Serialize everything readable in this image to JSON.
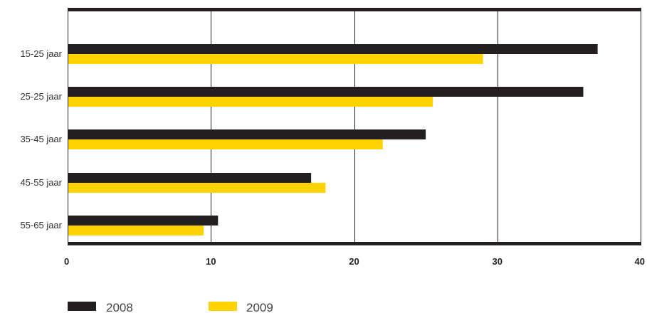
{
  "chart_data": {
    "type": "bar",
    "orientation": "horizontal",
    "categories": [
      "15-25 jaar",
      "25-25 jaar",
      "35-45 jaar",
      "45-55 jaar",
      "55-65 jaar"
    ],
    "series": [
      {
        "name": "2008",
        "color": "#231f20",
        "values": [
          37,
          36,
          25,
          17,
          10.5
        ]
      },
      {
        "name": "2009",
        "color": "#ffd200",
        "values": [
          29,
          25.5,
          22,
          18,
          9.5
        ]
      }
    ],
    "x_ticks": [
      "0",
      "10",
      "20",
      "30",
      "40"
    ],
    "xlim": [
      0,
      40
    ],
    "grid": true,
    "legend_position": "bottom-left"
  }
}
